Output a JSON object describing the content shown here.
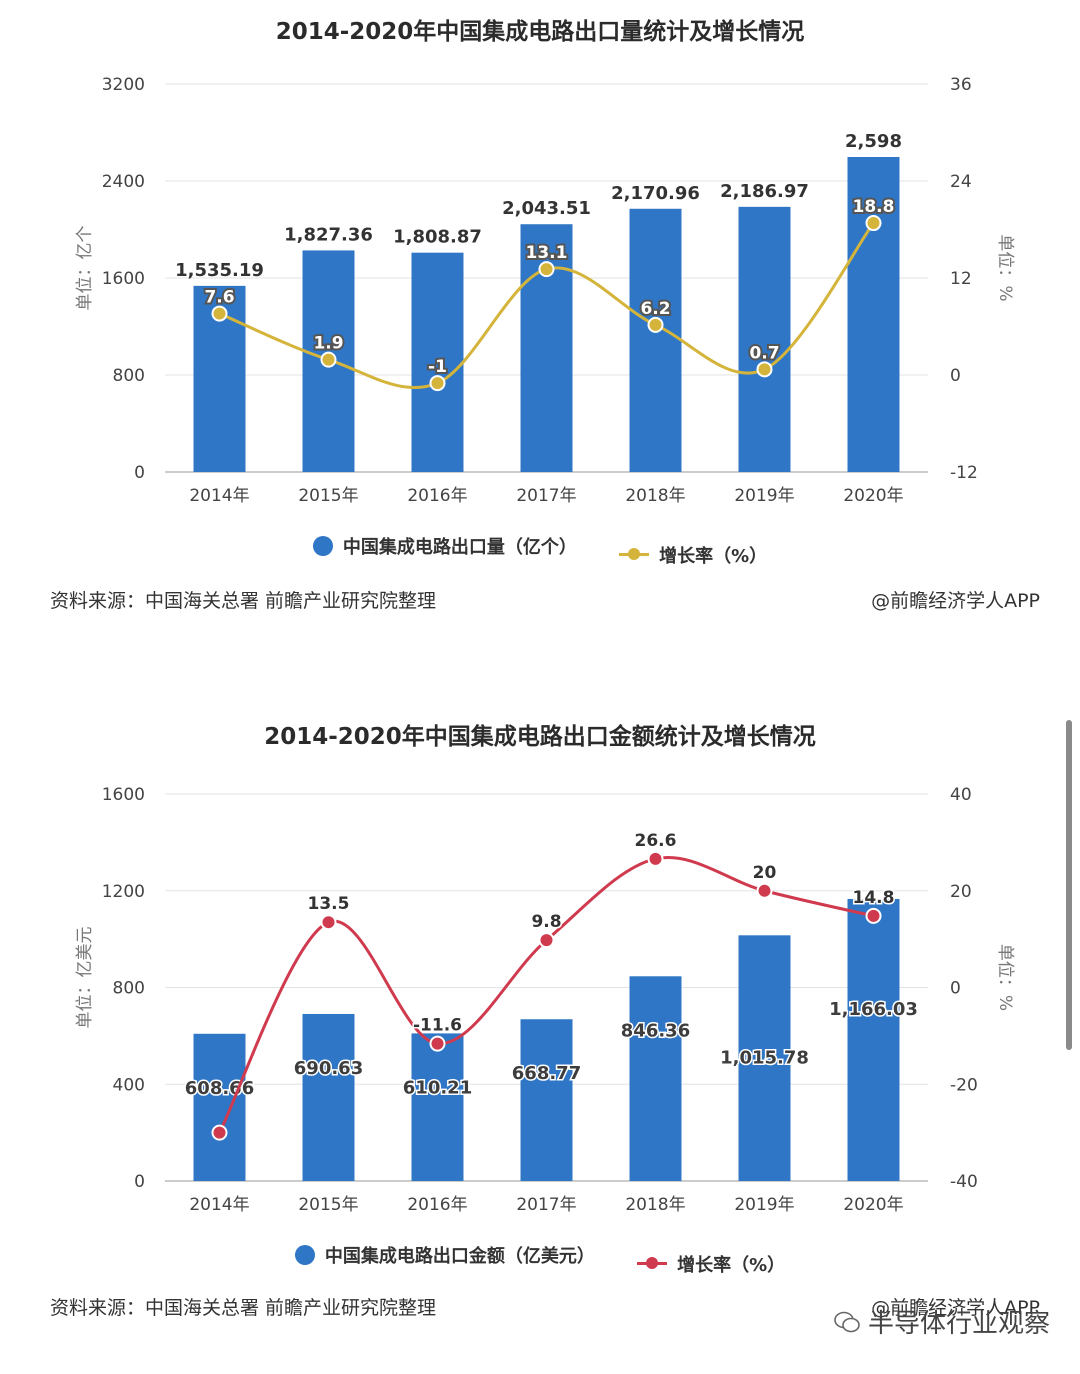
{
  "charts": [
    {
      "title": "2014-2020年中国集成电路出口量统计及增长情况",
      "source": "资料来源：中国海关总署 前瞻产业研究院整理",
      "credit": "@前瞻经济学人APP",
      "legend": {
        "bar": "中国集成电路出口量（亿个）",
        "line": "增长率（%）"
      },
      "left_axis_label": "单位：亿个",
      "right_axis_label": "单位：%",
      "colors": {
        "bar": "#2f77c6",
        "line": "#d4b43a",
        "point": "#d4b43a"
      }
    },
    {
      "title": "2014-2020年中国集成电路出口金额统计及增长情况",
      "source": "资料来源：中国海关总署 前瞻产业研究院整理",
      "credit": "@前瞻经济学人APP",
      "legend": {
        "bar": "中国集成电路出口金额（亿美元）",
        "line": "增长率（%）"
      },
      "left_axis_label": "单位：亿美元",
      "right_axis_label": "单位：%",
      "colors": {
        "bar": "#2f77c6",
        "line": "#d03a4e",
        "point": "#d03a4e"
      }
    }
  ],
  "chart_data": [
    {
      "type": "bar",
      "title": "2014-2020年中国集成电路出口量统计及增长情况",
      "categories": [
        "2014年",
        "2015年",
        "2016年",
        "2017年",
        "2018年",
        "2019年",
        "2020年"
      ],
      "series": [
        {
          "name": "中国集成电路出口量（亿个）",
          "type": "bar",
          "axis": "left",
          "values": [
            1535.19,
            1827.36,
            1808.87,
            2043.51,
            2170.96,
            2186.97,
            2598
          ],
          "labels": [
            "1,535.19",
            "1,827.36",
            "1,808.87",
            "2,043.51",
            "2,170.96",
            "2,186.97",
            "2,598"
          ]
        },
        {
          "name": "增长率（%）",
          "type": "line",
          "axis": "right",
          "values": [
            7.6,
            1.9,
            -1,
            13.1,
            6.2,
            0.7,
            18.8
          ],
          "labels": [
            "7.6",
            "1.9",
            "-1",
            "13.1",
            "6.2",
            "0.7",
            "18.8"
          ]
        }
      ],
      "ylim_left": [
        0,
        3200
      ],
      "yticks_left": [
        "0",
        "800",
        "1600",
        "2400",
        "3200"
      ],
      "ylim_right": [
        -12,
        36
      ],
      "yticks_right": [
        "-12",
        "0",
        "12",
        "24",
        "36"
      ],
      "ylabel_left": "单位：亿个",
      "ylabel_right": "单位：%",
      "grid": true,
      "legend_position": "bottom"
    },
    {
      "type": "bar",
      "title": "2014-2020年中国集成电路出口金额统计及增长情况",
      "categories": [
        "2014年",
        "2015年",
        "2016年",
        "2017年",
        "2018年",
        "2019年",
        "2020年"
      ],
      "series": [
        {
          "name": "中国集成电路出口金额（亿美元）",
          "type": "bar",
          "axis": "left",
          "values": [
            608.66,
            690.63,
            610.21,
            668.77,
            846.36,
            1015.78,
            1166.03
          ],
          "labels": [
            "608.66",
            "690.63",
            "610.21",
            "668.77",
            "846.36",
            "1,015.78",
            "1,166.03"
          ]
        },
        {
          "name": "增长率（%）",
          "type": "line",
          "axis": "right",
          "values": [
            -30,
            13.5,
            -11.6,
            9.8,
            26.6,
            20,
            14.8
          ],
          "labels": [
            "",
            "13.5",
            "-11.6",
            "9.8",
            "26.6",
            "20",
            "14.8"
          ]
        }
      ],
      "ylim_left": [
        0,
        1600
      ],
      "yticks_left": [
        "0",
        "400",
        "800",
        "1200",
        "1600"
      ],
      "ylim_right": [
        -40,
        40
      ],
      "yticks_right": [
        "-40",
        "-20",
        "0",
        "20",
        "40"
      ],
      "ylabel_left": "单位：亿美元",
      "ylabel_right": "单位：%",
      "grid": true,
      "legend_position": "bottom"
    }
  ],
  "footer_watermark": "半导体行业观察"
}
